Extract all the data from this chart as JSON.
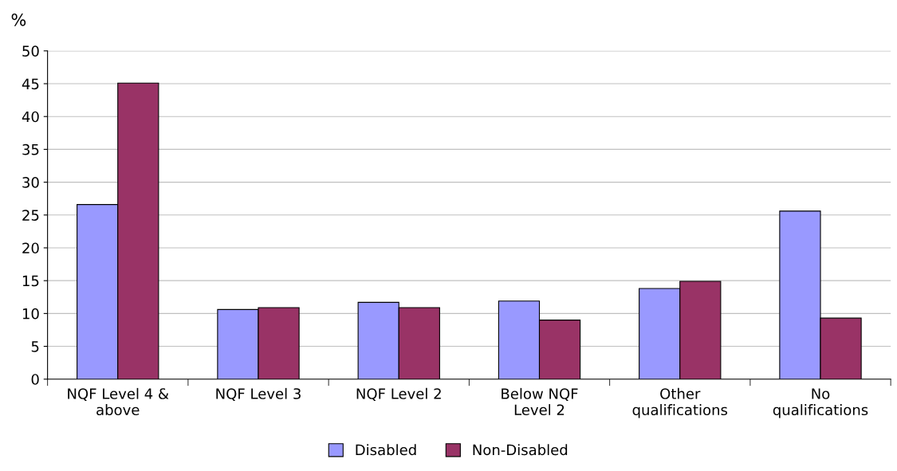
{
  "chart_data": {
    "type": "bar",
    "ylabel": "%",
    "categories": [
      "NQF Level 4 &\nabove",
      "NQF Level 3",
      "NQF Level 2",
      "Below NQF\nLevel 2",
      "Other\nqualifications",
      "No\nqualifications"
    ],
    "series": [
      {
        "name": "Disabled",
        "color": "#9999ff",
        "values": [
          26.6,
          10.6,
          11.7,
          11.9,
          13.8,
          25.6
        ]
      },
      {
        "name": "Non-Disabled",
        "color": "#993366",
        "values": [
          45.1,
          10.9,
          10.9,
          9.0,
          14.9,
          9.3
        ]
      }
    ],
    "ylim": [
      0,
      50
    ],
    "yticks": [
      0,
      5,
      10,
      15,
      20,
      25,
      30,
      35,
      40,
      45,
      50
    ],
    "grid": "y",
    "legend": "bottom"
  }
}
